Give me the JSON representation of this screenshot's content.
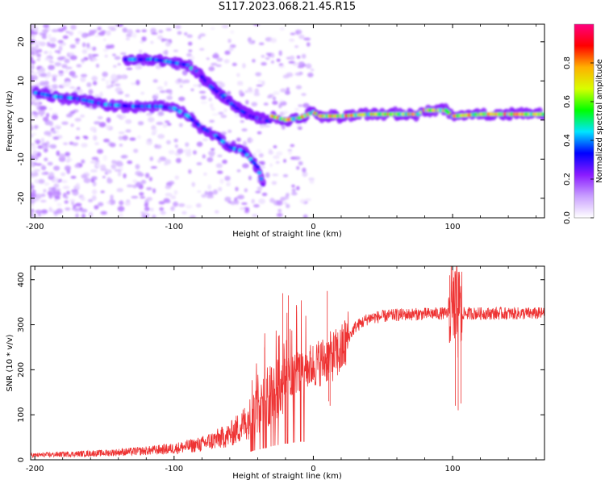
{
  "title": "S117.2023.068.21.45.R15",
  "chart_data": [
    {
      "type": "heatmap",
      "xlabel": "Height of straight line (km)",
      "ylabel": "Frequency (Hz)",
      "xlim": [
        -203,
        166
      ],
      "ylim": [
        -25,
        24.5
      ],
      "x_ticks": [
        -200,
        -100,
        0,
        100
      ],
      "y_ticks": [
        -20,
        -10,
        0,
        10,
        20
      ],
      "x_tick_labels": [
        "-200",
        "-100",
        "0",
        "100"
      ],
      "y_tick_labels": [
        "-20",
        "-10",
        "0",
        "10",
        "20"
      ],
      "colorbar": {
        "label": "Normalized spectral amplitude",
        "range": [
          0,
          1
        ],
        "ticks": [
          0.0,
          0.2,
          0.4,
          0.6,
          0.8
        ],
        "tick_labels": [
          "0.0",
          "0.2",
          "0.4",
          "0.6",
          "0.8"
        ],
        "colors": [
          "#ffffff",
          "#c9a0ff",
          "#8a1bff",
          "#0000ff",
          "#00e5ff",
          "#00ff00",
          "#d8ff00",
          "#ffb000",
          "#ff0000",
          "#ff0080"
        ]
      },
      "ridges": [
        {
          "name": "",
          "points": [
            [
              -200,
              7
            ],
            [
              -185,
              6
            ],
            [
              -170,
              5.5
            ],
            [
              -150,
              4
            ],
            [
              -130,
              3.5
            ],
            [
              -110,
              3.5
            ],
            [
              -100,
              3
            ],
            [
              -90,
              1
            ],
            [
              -80,
              -2
            ],
            [
              -70,
              -4
            ],
            [
              -60,
              -7
            ],
            [
              -50,
              -8
            ],
            [
              -40,
              -12
            ],
            [
              -35,
              -18
            ]
          ],
          "amplitude": 0.4
        },
        {
          "name": "",
          "points": [
            [
              -135,
              15.5
            ],
            [
              -115,
              15.5
            ],
            [
              -105,
              15
            ],
            [
              -90,
              14
            ],
            [
              -80,
              11
            ],
            [
              -70,
              8
            ],
            [
              -60,
              5
            ],
            [
              -50,
              2
            ],
            [
              -40,
              0.5
            ],
            [
              -30,
              -0.5
            ]
          ],
          "amplitude": 0.42
        },
        {
          "name": "",
          "points": [
            [
              -85,
              13
            ],
            [
              -75,
              9
            ],
            [
              -65,
              6
            ],
            [
              -55,
              3
            ],
            [
              -45,
              1
            ],
            [
              -35,
              0
            ]
          ],
          "amplitude": 0.35
        },
        {
          "name": "",
          "points": [
            [
              -30,
              1
            ],
            [
              -20,
              0
            ],
            [
              -10,
              0.5
            ],
            [
              0,
              2
            ],
            [
              5,
              1
            ],
            [
              20,
              1
            ],
            [
              40,
              1.5
            ],
            [
              60,
              1.5
            ],
            [
              75,
              1.5
            ],
            [
              80,
              2.5
            ],
            [
              90,
              2.5
            ],
            [
              95,
              2.5
            ],
            [
              100,
              1
            ],
            [
              120,
              1.5
            ],
            [
              140,
              1.5
            ],
            [
              166,
              1.5
            ]
          ],
          "amplitude": 0.75
        }
      ]
    },
    {
      "type": "line",
      "xlabel": "Height of straight line (km)",
      "ylabel": "SNR (10 * v/v)",
      "xlim": [
        -203,
        166
      ],
      "ylim": [
        0,
        430
      ],
      "x_ticks": [
        -200,
        -100,
        0,
        100
      ],
      "y_ticks": [
        0,
        100,
        200,
        300,
        400
      ],
      "x_tick_labels": [
        "-200",
        "-100",
        "0",
        "100"
      ],
      "y_tick_labels": [
        "0",
        "100",
        "200",
        "300",
        "400"
      ],
      "color": "#ee3333",
      "envelope": [
        [
          -203,
          10
        ],
        [
          -150,
          15
        ],
        [
          -120,
          20
        ],
        [
          -100,
          25
        ],
        [
          -80,
          35
        ],
        [
          -60,
          55
        ],
        [
          -50,
          80
        ],
        [
          -40,
          110
        ],
        [
          -30,
          150
        ],
        [
          -20,
          180
        ],
        [
          -10,
          200
        ],
        [
          0,
          210
        ],
        [
          10,
          225
        ],
        [
          20,
          240
        ],
        [
          25,
          270
        ],
        [
          30,
          295
        ],
        [
          40,
          315
        ],
        [
          60,
          322
        ],
        [
          90,
          325
        ],
        [
          120,
          325
        ],
        [
          166,
          325
        ]
      ],
      "spikes": [
        [
          -35,
          250
        ],
        [
          -25,
          275
        ],
        [
          -22,
          370
        ],
        [
          -18,
          365
        ],
        [
          -12,
          340
        ],
        [
          10,
          375
        ],
        [
          11,
          130
        ],
        [
          12,
          120
        ],
        [
          98,
          410
        ],
        [
          100,
          430
        ],
        [
          102,
          120
        ],
        [
          104,
          110
        ],
        [
          105,
          410
        ],
        [
          106,
          125
        ]
      ]
    }
  ]
}
